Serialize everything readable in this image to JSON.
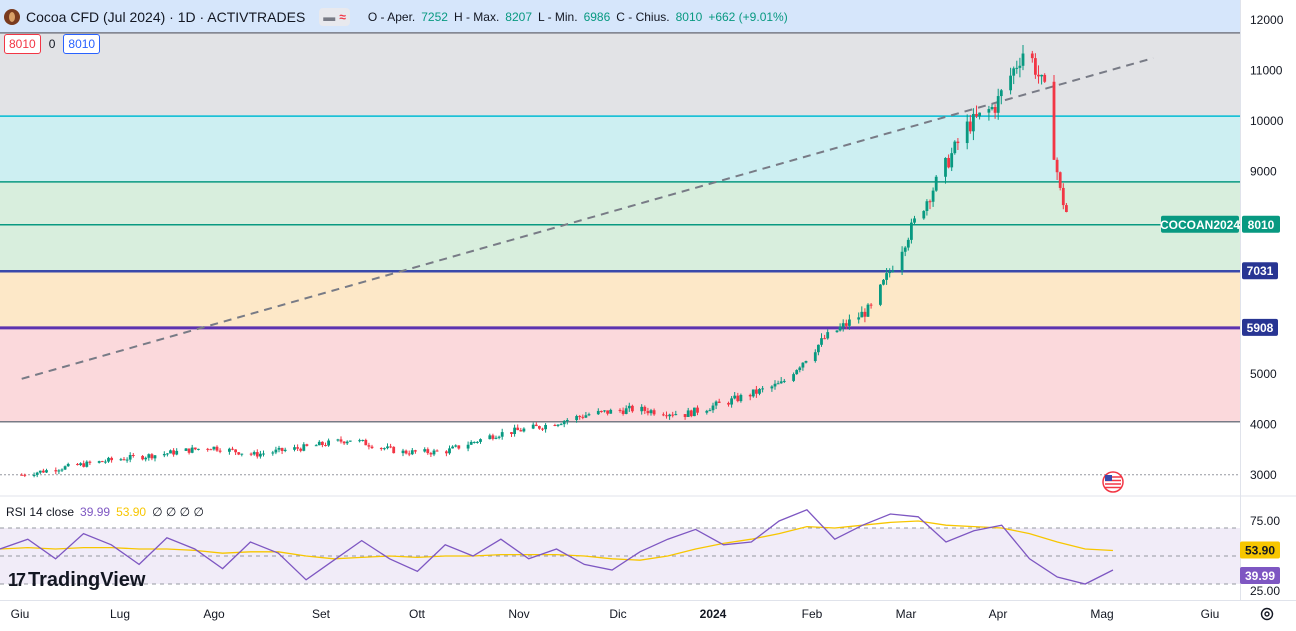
{
  "header": {
    "title": "Cocoa CFD (Jul 2024) · 1D · ACTIVTRADES",
    "ohlc": {
      "o_label": "O - Aper.",
      "o": "7252",
      "h_label": "H - Max.",
      "h": "8207",
      "l_label": "L - Min.",
      "l": "6986",
      "c_label": "C - Chius.",
      "c": "8010",
      "change": "+662 (+9.01%)"
    },
    "bid": "8010",
    "spread": "0",
    "ask": "8010"
  },
  "colors": {
    "up": "#089981",
    "down": "#f23645",
    "rsi": "#7e57c2",
    "rsi_ma": "#f7c600",
    "blue_zone": "#d6e6fb",
    "gray_zone": "#e2e3e6",
    "cyan_zone": "#cdeff2",
    "green_zone": "#d8eedd",
    "orange_zone": "#fde8c8",
    "red_zone": "#fbd9dc"
  },
  "chart_data": [
    {
      "type": "candlestick",
      "title": "",
      "ylim": [
        2600,
        12400
      ],
      "y_ticks": [
        "3000",
        "4000",
        "5000",
        "6000",
        "7000",
        "8000",
        "9000",
        "10000",
        "11000",
        "12000"
      ],
      "x_labels": [
        "Giu",
        "Lug",
        "Ago",
        "Set",
        "Ott",
        "Nov",
        "Dic",
        "2024",
        "Feb",
        "Mar",
        "Apr",
        "Mag",
        "Giu"
      ],
      "price_labels": {
        "symbol_tag": "COCOAN2024",
        "last": "8010",
        "level_1": "7031",
        "level_2": "5908"
      },
      "levels": [
        11750,
        10100,
        8800,
        7950,
        7031,
        5908,
        4050,
        3000
      ],
      "trendline": {
        "from": [
          "2023-06-01",
          4900
        ],
        "to": [
          "2024-05-31",
          11250
        ]
      },
      "close_path": [
        [
          "2023-06-01",
          3000
        ],
        [
          "2023-06-15",
          3150
        ],
        [
          "2023-07-01",
          3300
        ],
        [
          "2023-07-15",
          3400
        ],
        [
          "2023-08-01",
          3550
        ],
        [
          "2023-08-15",
          3400
        ],
        [
          "2023-09-01",
          3550
        ],
        [
          "2023-09-15",
          3700
        ],
        [
          "2023-10-01",
          3450
        ],
        [
          "2023-10-15",
          3450
        ],
        [
          "2023-11-01",
          3800
        ],
        [
          "2023-11-15",
          3950
        ],
        [
          "2023-12-01",
          4200
        ],
        [
          "2023-12-15",
          4300
        ],
        [
          "2024-01-01",
          4200
        ],
        [
          "2024-01-15",
          4450
        ],
        [
          "2024-02-01",
          4800
        ],
        [
          "2024-02-15",
          5700
        ],
        [
          "2024-03-01",
          6300
        ],
        [
          "2024-03-15",
          8000
        ],
        [
          "2024-04-01",
          9900
        ],
        [
          "2024-04-10",
          10300
        ],
        [
          "2024-04-20",
          11500
        ],
        [
          "2024-04-26",
          10600
        ],
        [
          "2024-05-01",
          8600
        ],
        [
          "2024-05-04",
          8010
        ]
      ]
    },
    {
      "type": "line",
      "title": "",
      "legend": {
        "label": "RSI 14 close",
        "rsi": "39.99",
        "ma": "53.90",
        "extra": "∅ ∅ ∅ ∅"
      },
      "ylim": [
        20,
        90
      ],
      "y_ticks": [
        "25.00",
        "75.00"
      ],
      "bands": [
        70,
        50,
        30
      ],
      "last_labels": {
        "ma": "53.90",
        "rsi": "39.99"
      },
      "series": [
        {
          "values": [
            55,
            62,
            48,
            66,
            58,
            44,
            63,
            55,
            41,
            60,
            52,
            33,
            47,
            61,
            48,
            39,
            58,
            50,
            62,
            48,
            55,
            44,
            40,
            53,
            62,
            69,
            58,
            60,
            75,
            83,
            62,
            72,
            80,
            78,
            60,
            68,
            72,
            48,
            35,
            30,
            40
          ]
        },
        {
          "values": [
            55,
            56,
            55,
            56,
            56,
            55,
            55,
            54,
            52,
            53,
            53,
            50,
            48,
            49,
            50,
            49,
            50,
            50,
            51,
            51,
            51,
            50,
            48,
            47,
            50,
            55,
            59,
            62,
            66,
            71,
            70,
            72,
            74,
            75,
            72,
            71,
            70,
            66,
            60,
            55,
            53.9
          ]
        }
      ]
    }
  ],
  "branding": "TradingView"
}
